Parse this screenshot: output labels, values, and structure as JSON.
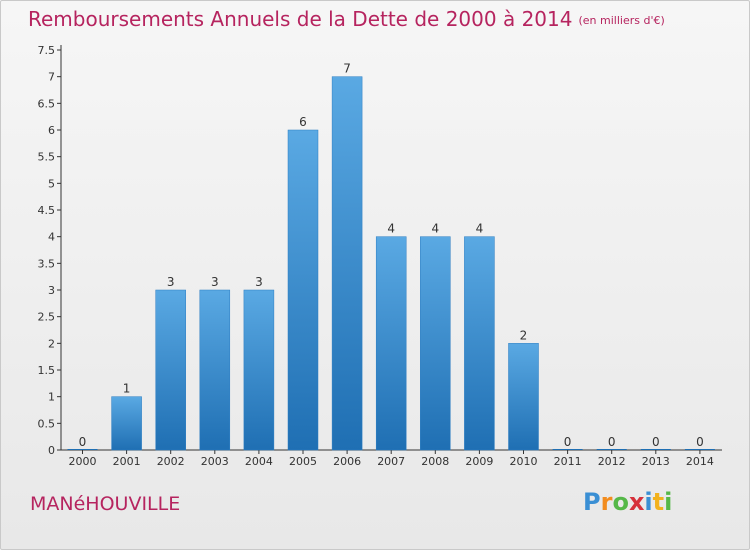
{
  "title": "Remboursements Annuels de la Dette de 2000 à 2014",
  "unit": "(en milliers d'€)",
  "commune": "MANéHOUVILLE",
  "logo": {
    "letters": [
      "P",
      "r",
      "o",
      "x",
      "i",
      "t",
      "i"
    ]
  },
  "colors": {
    "title": "#b6245f",
    "bar_top": "#5aa9e3",
    "bar_bottom": "#1f6fb3",
    "axis": "#333333"
  },
  "chart_data": {
    "type": "bar",
    "title": "Remboursements Annuels de la Dette de 2000 à 2014",
    "categories": [
      "2000",
      "2001",
      "2002",
      "2003",
      "2004",
      "2005",
      "2006",
      "2007",
      "2008",
      "2009",
      "2010",
      "2011",
      "2012",
      "2013",
      "2014"
    ],
    "values": [
      0,
      1,
      3,
      3,
      3,
      6,
      7,
      4,
      4,
      4,
      2,
      0,
      0,
      0,
      0
    ],
    "data_labels": [
      "0",
      "1",
      "3",
      "3",
      "3",
      "6",
      "7",
      "4",
      "4",
      "4",
      "2",
      "0",
      "0",
      "0",
      "0"
    ],
    "y_ticks": [
      "0",
      "0.5",
      "1",
      "1.5",
      "2",
      "2.5",
      "3",
      "3.5",
      "4",
      "4.5",
      "5",
      "5.5",
      "6",
      "6.5",
      "7",
      "7.5"
    ],
    "ylim": [
      0,
      7.5
    ],
    "xlabel": "",
    "ylabel": "",
    "grid": false
  }
}
